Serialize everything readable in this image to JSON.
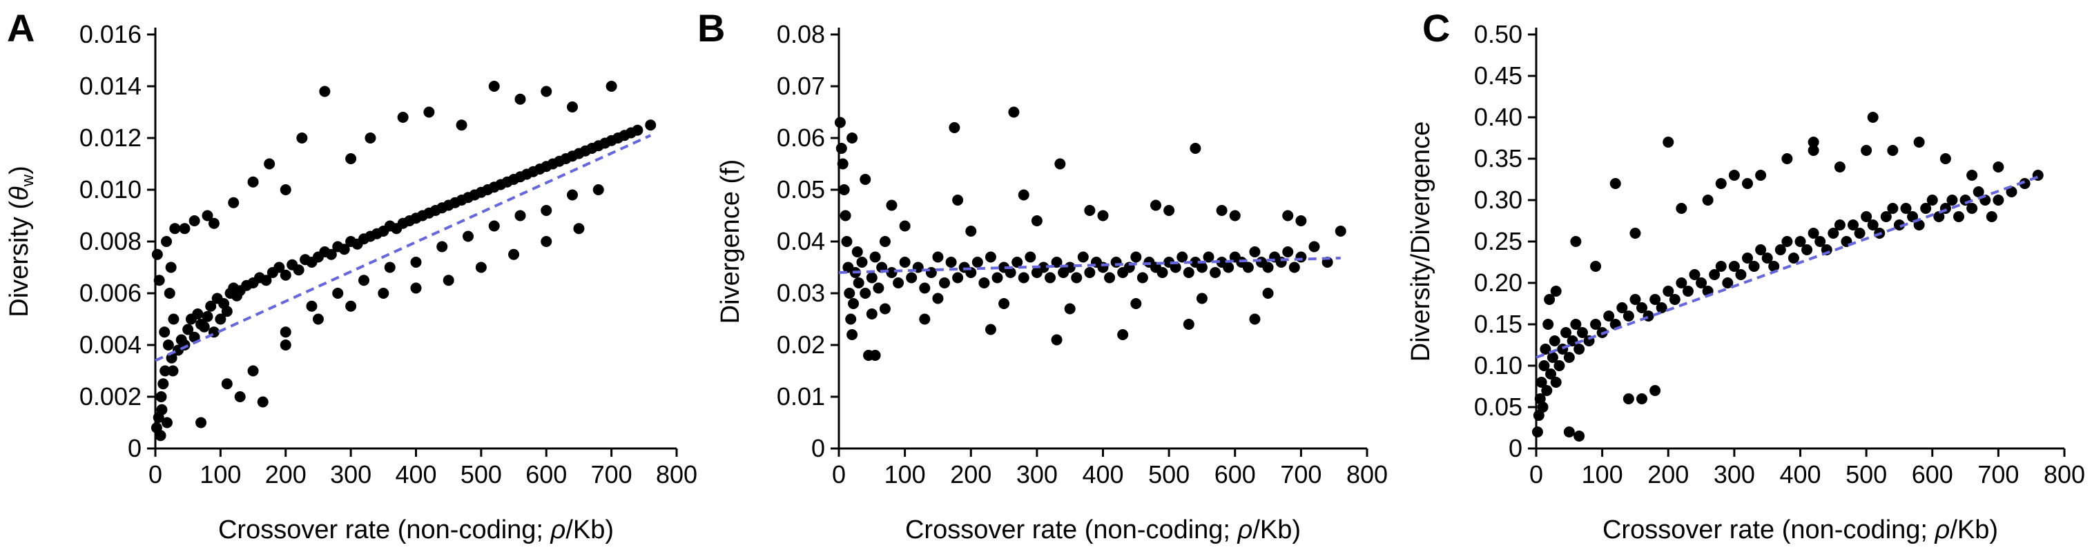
{
  "chart_data": [
    {
      "type": "scatter",
      "panel_label": "A",
      "xlabel_parts": [
        "Crossover rate (non-coding; ",
        "ρ",
        "/Kb)"
      ],
      "ylabel_parts": [
        "Diversity (",
        "θ",
        "w",
        ")"
      ],
      "xlim": [
        0,
        800
      ],
      "ylim": [
        0,
        0.016
      ],
      "xticks": [
        "0",
        "100",
        "200",
        "300",
        "400",
        "500",
        "600",
        "700",
        "800"
      ],
      "yticks": [
        "0",
        "0.002",
        "0.004",
        "0.006",
        "0.008",
        "0.010",
        "0.012",
        "0.014",
        "0.016"
      ],
      "point_color": "#000000",
      "trendline": {
        "x": [
          0,
          760
        ],
        "y": [
          0.0034,
          0.0121
        ],
        "color": "#6666dd",
        "style": "dashed"
      },
      "series": [
        {
          "x": [
            2,
            5,
            8,
            10,
            12,
            15,
            18,
            20,
            22,
            25,
            28,
            30,
            3,
            6,
            9,
            14,
            17,
            24,
            27,
            35,
            40,
            45,
            50,
            55,
            60,
            65,
            70,
            75,
            80,
            85,
            90,
            95,
            100,
            105,
            110,
            115,
            120,
            125,
            130,
            140,
            150,
            160,
            170,
            180,
            190,
            200,
            210,
            220,
            230,
            240,
            250,
            260,
            270,
            280,
            290,
            300,
            310,
            320,
            330,
            340,
            350,
            360,
            370,
            380,
            390,
            400,
            410,
            420,
            430,
            440,
            450,
            460,
            470,
            480,
            490,
            500,
            510,
            520,
            530,
            540,
            550,
            560,
            570,
            580,
            590,
            600,
            610,
            620,
            630,
            640,
            650,
            660,
            670,
            680,
            690,
            700,
            710,
            720,
            730,
            740,
            760,
            45,
            60,
            80,
            90,
            120,
            150,
            175,
            200,
            225,
            260,
            300,
            330,
            380,
            420,
            470,
            520,
            560,
            600,
            640,
            700,
            150,
            165,
            200,
            250,
            300,
            350,
            400,
            450,
            500,
            550,
            600,
            650,
            70,
            110,
            130,
            200,
            240,
            280,
            320,
            360,
            400,
            440,
            480,
            520,
            560,
            600,
            640,
            680
          ],
          "y": [
            0.0008,
            0.0012,
            0.0005,
            0.0015,
            0.0025,
            0.003,
            0.001,
            0.004,
            0.006,
            0.0035,
            0.005,
            0.0085,
            0.0075,
            0.0065,
            0.002,
            0.0045,
            0.008,
            0.007,
            0.003,
            0.0038,
            0.0042,
            0.004,
            0.0046,
            0.005,
            0.0043,
            0.0052,
            0.0048,
            0.0047,
            0.0051,
            0.0055,
            0.0045,
            0.0058,
            0.005,
            0.0056,
            0.0053,
            0.006,
            0.0062,
            0.0059,
            0.0061,
            0.0063,
            0.0064,
            0.0066,
            0.0065,
            0.0068,
            0.007,
            0.0067,
            0.0071,
            0.0069,
            0.0073,
            0.0072,
            0.0074,
            0.0076,
            0.0075,
            0.0078,
            0.0077,
            0.008,
            0.0079,
            0.0081,
            0.0082,
            0.0083,
            0.0084,
            0.0086,
            0.0085,
            0.0087,
            0.0088,
            0.0089,
            0.009,
            0.0091,
            0.0092,
            0.0093,
            0.0094,
            0.0095,
            0.0096,
            0.0097,
            0.0098,
            0.0099,
            0.01,
            0.0101,
            0.0102,
            0.0103,
            0.0104,
            0.0105,
            0.0106,
            0.0107,
            0.0108,
            0.0109,
            0.011,
            0.0111,
            0.0112,
            0.0113,
            0.0114,
            0.0115,
            0.0116,
            0.0117,
            0.0118,
            0.0119,
            0.012,
            0.0121,
            0.0122,
            0.0123,
            0.0125,
            0.0085,
            0.0088,
            0.009,
            0.0087,
            0.0095,
            0.0103,
            0.011,
            0.01,
            0.012,
            0.0138,
            0.0112,
            0.012,
            0.0128,
            0.013,
            0.0125,
            0.014,
            0.0135,
            0.0138,
            0.0132,
            0.014,
            0.003,
            0.0018,
            0.0045,
            0.005,
            0.0055,
            0.006,
            0.0062,
            0.0065,
            0.007,
            0.0075,
            0.008,
            0.0085,
            0.001,
            0.0025,
            0.002,
            0.004,
            0.0055,
            0.006,
            0.0065,
            0.007,
            0.0072,
            0.0078,
            0.0082,
            0.0086,
            0.009,
            0.0092,
            0.0098,
            0.01
          ]
        }
      ]
    },
    {
      "type": "scatter",
      "panel_label": "B",
      "xlabel_parts": [
        "Crossover rate (non-coding; ",
        "ρ",
        "/Kb)"
      ],
      "ylabel_parts": [
        "Divergence (f)",
        "",
        "",
        ""
      ],
      "xlim": [
        0,
        800
      ],
      "ylim": [
        0,
        0.08
      ],
      "xticks": [
        "0",
        "100",
        "200",
        "300",
        "400",
        "500",
        "600",
        "700",
        "800"
      ],
      "yticks": [
        "0",
        "0.01",
        "0.02",
        "0.03",
        "0.04",
        "0.05",
        "0.06",
        "0.07",
        "0.08"
      ],
      "point_color": "#000000",
      "trendline": {
        "x": [
          0,
          760
        ],
        "y": [
          0.034,
          0.0368
        ],
        "color": "#6666dd",
        "style": "dashed"
      },
      "series": [
        {
          "x": [
            2,
            4,
            6,
            8,
            10,
            12,
            14,
            16,
            18,
            20,
            22,
            25,
            28,
            30,
            35,
            40,
            45,
            50,
            55,
            60,
            65,
            70,
            80,
            90,
            100,
            110,
            120,
            130,
            140,
            150,
            160,
            170,
            180,
            190,
            200,
            210,
            220,
            230,
            240,
            250,
            260,
            270,
            280,
            290,
            300,
            310,
            320,
            330,
            340,
            350,
            360,
            370,
            380,
            390,
            400,
            410,
            420,
            430,
            440,
            450,
            460,
            470,
            480,
            490,
            500,
            510,
            520,
            530,
            540,
            550,
            560,
            570,
            580,
            590,
            600,
            610,
            620,
            630,
            640,
            650,
            660,
            670,
            680,
            690,
            700,
            720,
            740,
            760,
            175,
            265,
            335,
            540,
            40,
            55,
            70,
            20,
            50,
            100,
            150,
            200,
            250,
            300,
            350,
            400,
            450,
            500,
            550,
            600,
            650,
            700,
            130,
            230,
            330,
            430,
            530,
            630,
            80,
            180,
            280,
            380,
            480,
            580,
            680
          ],
          "y": [
            0.063,
            0.058,
            0.055,
            0.05,
            0.045,
            0.04,
            0.035,
            0.03,
            0.025,
            0.022,
            0.028,
            0.034,
            0.038,
            0.032,
            0.036,
            0.03,
            0.018,
            0.033,
            0.037,
            0.031,
            0.035,
            0.04,
            0.034,
            0.032,
            0.036,
            0.033,
            0.035,
            0.031,
            0.034,
            0.037,
            0.032,
            0.036,
            0.033,
            0.035,
            0.034,
            0.036,
            0.032,
            0.037,
            0.033,
            0.035,
            0.034,
            0.036,
            0.033,
            0.037,
            0.034,
            0.035,
            0.033,
            0.036,
            0.034,
            0.035,
            0.033,
            0.037,
            0.034,
            0.036,
            0.035,
            0.033,
            0.036,
            0.034,
            0.035,
            0.037,
            0.033,
            0.036,
            0.035,
            0.034,
            0.036,
            0.035,
            0.037,
            0.034,
            0.036,
            0.035,
            0.037,
            0.034,
            0.036,
            0.035,
            0.037,
            0.036,
            0.035,
            0.038,
            0.036,
            0.035,
            0.037,
            0.036,
            0.038,
            0.035,
            0.037,
            0.039,
            0.036,
            0.042,
            0.062,
            0.065,
            0.055,
            0.058,
            0.052,
            0.018,
            0.027,
            0.06,
            0.026,
            0.043,
            0.029,
            0.042,
            0.028,
            0.044,
            0.027,
            0.045,
            0.028,
            0.046,
            0.029,
            0.045,
            0.03,
            0.044,
            0.025,
            0.023,
            0.021,
            0.022,
            0.024,
            0.025,
            0.047,
            0.048,
            0.049,
            0.046,
            0.047,
            0.046,
            0.045
          ]
        }
      ]
    },
    {
      "type": "scatter",
      "panel_label": "C",
      "xlabel_parts": [
        "Crossover rate (non-coding; ",
        "ρ",
        "/Kb)"
      ],
      "ylabel_parts": [
        "Diversity/Divergence",
        "",
        "",
        ""
      ],
      "xlim": [
        0,
        800
      ],
      "ylim": [
        0,
        0.5
      ],
      "xticks": [
        "0",
        "100",
        "200",
        "300",
        "400",
        "500",
        "600",
        "700",
        "800"
      ],
      "yticks": [
        "0",
        "0.05",
        "0.10",
        "0.15",
        "0.20",
        "0.25",
        "0.30",
        "0.35",
        "0.40",
        "0.45",
        "0.50"
      ],
      "point_color": "#000000",
      "trendline": {
        "x": [
          0,
          760
        ],
        "y": [
          0.11,
          0.328
        ],
        "color": "#6666dd",
        "style": "dashed"
      },
      "series": [
        {
          "x": [
            2,
            4,
            6,
            8,
            10,
            12,
            14,
            16,
            18,
            20,
            22,
            25,
            28,
            30,
            35,
            40,
            45,
            50,
            55,
            60,
            65,
            70,
            80,
            90,
            100,
            110,
            120,
            130,
            140,
            150,
            160,
            170,
            180,
            190,
            200,
            210,
            220,
            230,
            240,
            250,
            260,
            270,
            280,
            290,
            300,
            310,
            320,
            330,
            340,
            350,
            360,
            370,
            380,
            390,
            400,
            410,
            420,
            430,
            440,
            450,
            460,
            470,
            480,
            490,
            500,
            510,
            520,
            530,
            540,
            550,
            560,
            570,
            580,
            590,
            600,
            610,
            620,
            630,
            640,
            650,
            660,
            670,
            680,
            690,
            700,
            720,
            740,
            760,
            200,
            120,
            420,
            510,
            320,
            280,
            50,
            65,
            140,
            160,
            180,
            30,
            60,
            90,
            150,
            220,
            260,
            300,
            340,
            380,
            420,
            460,
            500,
            540,
            580,
            620,
            660,
            700
          ],
          "y": [
            0.02,
            0.04,
            0.06,
            0.08,
            0.05,
            0.1,
            0.12,
            0.07,
            0.15,
            0.18,
            0.09,
            0.11,
            0.13,
            0.08,
            0.1,
            0.12,
            0.14,
            0.11,
            0.13,
            0.15,
            0.12,
            0.14,
            0.13,
            0.15,
            0.14,
            0.16,
            0.15,
            0.17,
            0.16,
            0.18,
            0.17,
            0.16,
            0.18,
            0.17,
            0.19,
            0.18,
            0.2,
            0.19,
            0.21,
            0.2,
            0.19,
            0.21,
            0.22,
            0.2,
            0.22,
            0.21,
            0.23,
            0.22,
            0.24,
            0.23,
            0.22,
            0.24,
            0.25,
            0.23,
            0.25,
            0.24,
            0.26,
            0.25,
            0.24,
            0.26,
            0.27,
            0.25,
            0.27,
            0.26,
            0.28,
            0.27,
            0.26,
            0.28,
            0.29,
            0.27,
            0.29,
            0.28,
            0.27,
            0.29,
            0.3,
            0.28,
            0.29,
            0.3,
            0.28,
            0.3,
            0.29,
            0.31,
            0.3,
            0.28,
            0.3,
            0.31,
            0.32,
            0.33,
            0.37,
            0.32,
            0.37,
            0.4,
            0.32,
            0.32,
            0.02,
            0.015,
            0.06,
            0.06,
            0.07,
            0.19,
            0.25,
            0.22,
            0.26,
            0.29,
            0.3,
            0.33,
            0.33,
            0.35,
            0.36,
            0.34,
            0.36,
            0.36,
            0.37,
            0.35,
            0.33,
            0.34
          ]
        }
      ]
    }
  ]
}
